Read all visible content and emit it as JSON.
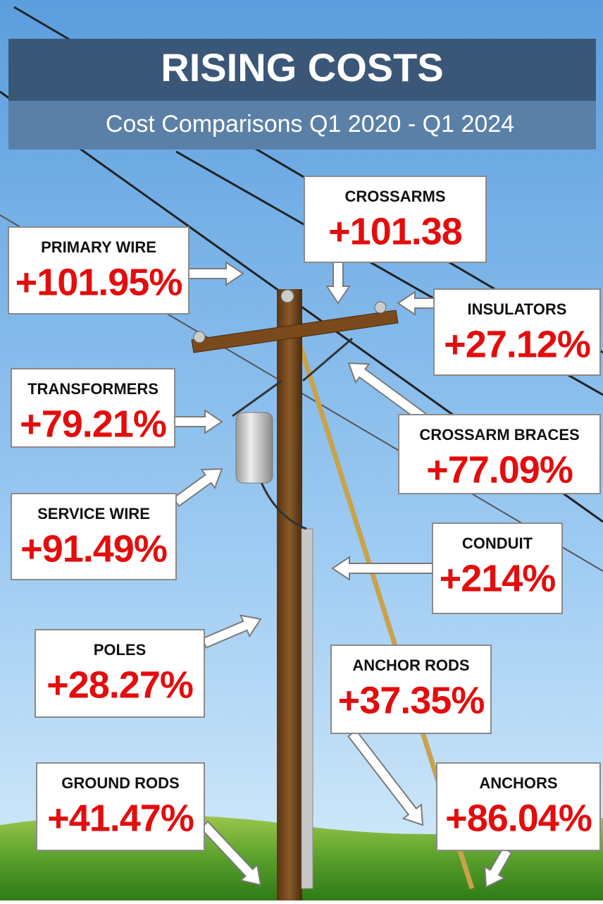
{
  "header": {
    "title": "RISING COSTS",
    "subtitle": "Cost Comparisons Q1 2020 - Q1 2024"
  },
  "items": [
    {
      "label": "CROSSARMS",
      "value": "+101.38"
    },
    {
      "label": "PRIMARY WIRE",
      "value": "+101.95%"
    },
    {
      "label": "INSULATORS",
      "value": "+27.12%"
    },
    {
      "label": "TRANSFORMERS",
      "value": "+79.21%"
    },
    {
      "label": "CROSSARM BRACES",
      "value": "+77.09%"
    },
    {
      "label": "SERVICE WIRE",
      "value": "+91.49%"
    },
    {
      "label": "CONDUIT",
      "value": "+214%"
    },
    {
      "label": "POLES",
      "value": "+28.27%"
    },
    {
      "label": "ANCHOR RODS",
      "value": "+37.35%"
    },
    {
      "label": "GROUND RODS",
      "value": "+41.47%"
    },
    {
      "label": "ANCHORS",
      "value": "+86.04%"
    }
  ]
}
